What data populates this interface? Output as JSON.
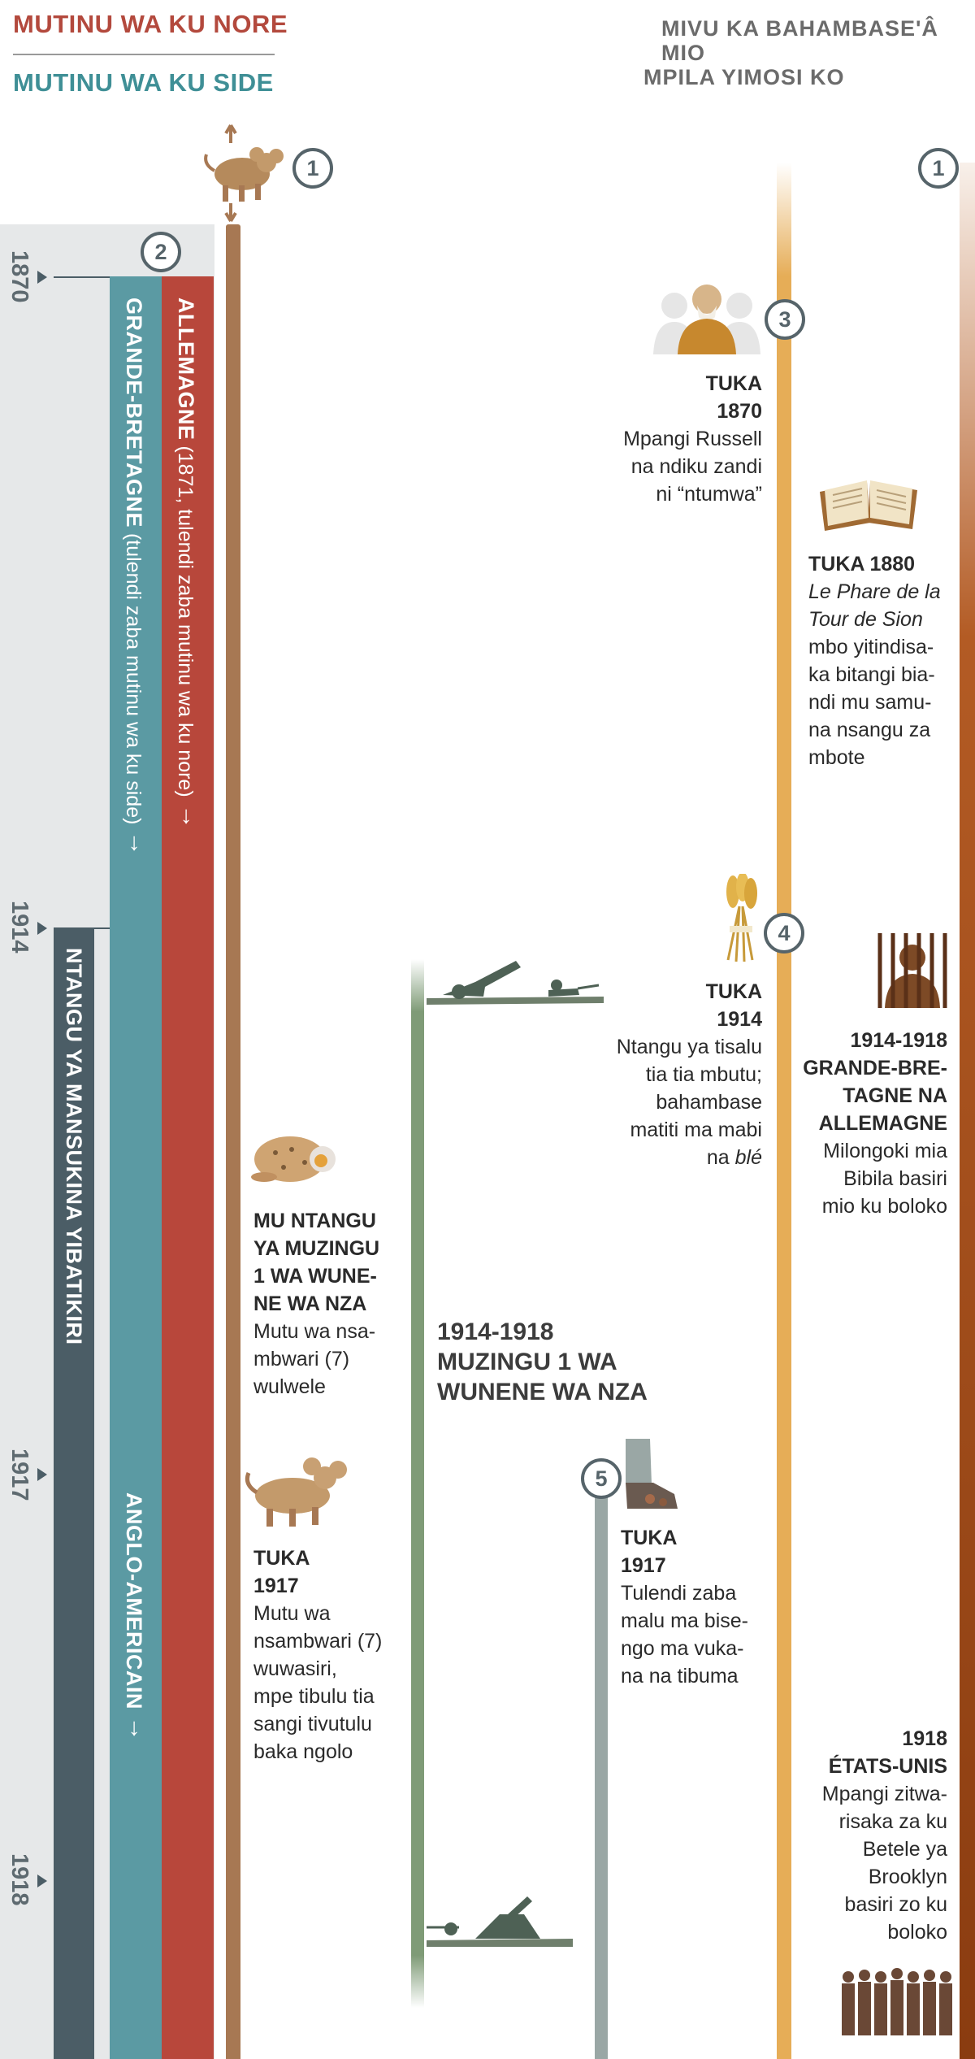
{
  "header": {
    "king_north_title": "MUTINU WA KU NORE",
    "king_south_title": "MUTINU WA KU SIDE",
    "right_title_line1": "MIVU KA BAHAMBASE'Â MIO",
    "right_title_line2": "MPILA YIMOSI KO"
  },
  "years": {
    "y1870": "1870",
    "y1914": "1914",
    "y1917": "1917",
    "y1918": "1918"
  },
  "markers": {
    "m1_left": "1",
    "m1_right": "1",
    "m2": "2",
    "m3": "3",
    "m4": "4",
    "m5": "5"
  },
  "bars": {
    "allemagne_name": "ALLEMAGNE",
    "allemagne_desc": "(1871, tulendi zaba mutinu wa ku nore)",
    "gb_name": "GRANDE-BRETAGNE",
    "gb_desc": "(tulendi zaba mutinu wa ku side)",
    "anglo": "ANGLO-AMERICAIN",
    "last_days": "NTANGU YA MANSUKINA YIBATIKIRI",
    "arrow": "↓"
  },
  "left_events": {
    "wounded": {
      "heading_l1": "MU NTANGU",
      "heading_l2": "YA MUZINGU",
      "heading_l3": "1 WA WUNE-",
      "heading_l4": "NE WA NZA",
      "body_l1": "Mutu wa nsa-",
      "body_l2": "mbwari (7)",
      "body_l3": "wulwele"
    },
    "healed": {
      "heading_l1": "TUKA",
      "heading_l2": "1917",
      "body_l1": "Mutu wa",
      "body_l2": "nsambwari (7)",
      "body_l3": "wuwasiri,",
      "body_l4": "mpe tibulu tia",
      "body_l5": "sangi tivutulu",
      "body_l6": "baka ngolo"
    }
  },
  "war": {
    "line1": "1914-1918",
    "line2": "MUZINGU 1 WA",
    "line3": "WUNENE WA NZA"
  },
  "feet": {
    "heading_l1": "TUKA",
    "heading_l2": "1917",
    "body_l1": "Tulendi zaba",
    "body_l2": "malu ma bise-",
    "body_l3": "ngo ma vuka-",
    "body_l4": "na na tibuma"
  },
  "right_events": {
    "russell": {
      "heading_l1": "TUKA",
      "heading_l2": "1870",
      "body_l1": "Mpangi Russell",
      "body_l2": "na ndiku zandi",
      "body_l3": "ni “ntumwa”"
    },
    "watchtower": {
      "heading": "TUKA 1880",
      "italic_l1": "Le Phare de la",
      "italic_l2": "Tour de Sion",
      "body_l1": "mbo yitindisa-",
      "body_l2": "ka bitangi bia-",
      "body_l3": "ndi mu samu-",
      "body_l4": "na nsangu za",
      "body_l5": "mbote"
    },
    "harvest": {
      "heading_l1": "TUKA",
      "heading_l2": "1914",
      "body_l1": "Ntangu ya tisalu",
      "body_l2": "tia tia mbutu;",
      "body_l3": "bahambase",
      "body_l4": "matiti ma mabi",
      "body_l5_a": "na ",
      "body_l5_b": "blé"
    },
    "prison": {
      "heading_l1": "1914-1918",
      "heading_l2": "GRANDE-BRE-",
      "heading_l3": "TAGNE NA",
      "heading_l4": "ALLEMAGNE",
      "body_l1": "Milongoki mia",
      "body_l2": "Bibila basiri",
      "body_l3": "mio ku boloko"
    },
    "usa": {
      "heading_l1": "1918",
      "heading_l2": "ÉTATS-UNIS",
      "body_l1": "Mpangi zitwa-",
      "body_l2": "risaka za ku",
      "body_l3": "Betele ya",
      "body_l4": "Brooklyn",
      "body_l5": "basiri zo ku",
      "body_l6": "boloko"
    }
  },
  "colors": {
    "king_north": "#b8473b",
    "king_south": "#5b9aa3",
    "last_days": "#4b5d66",
    "beast": "#a77853",
    "war": "#7f9b77",
    "gold": "#e6ad57",
    "rust": "#8a3c10"
  },
  "icons": {
    "beast": "seven-headed-beast-icon",
    "wounded_beast": "wounded-beast-icon",
    "soldiers": "soldiers-icon",
    "feet": "iron-clay-feet-icon",
    "russell": "russell-portrait-icon",
    "book": "open-book-icon",
    "wheat": "wheat-sheaf-icon",
    "prison": "prisoner-bars-icon",
    "group": "brothers-group-icon"
  }
}
